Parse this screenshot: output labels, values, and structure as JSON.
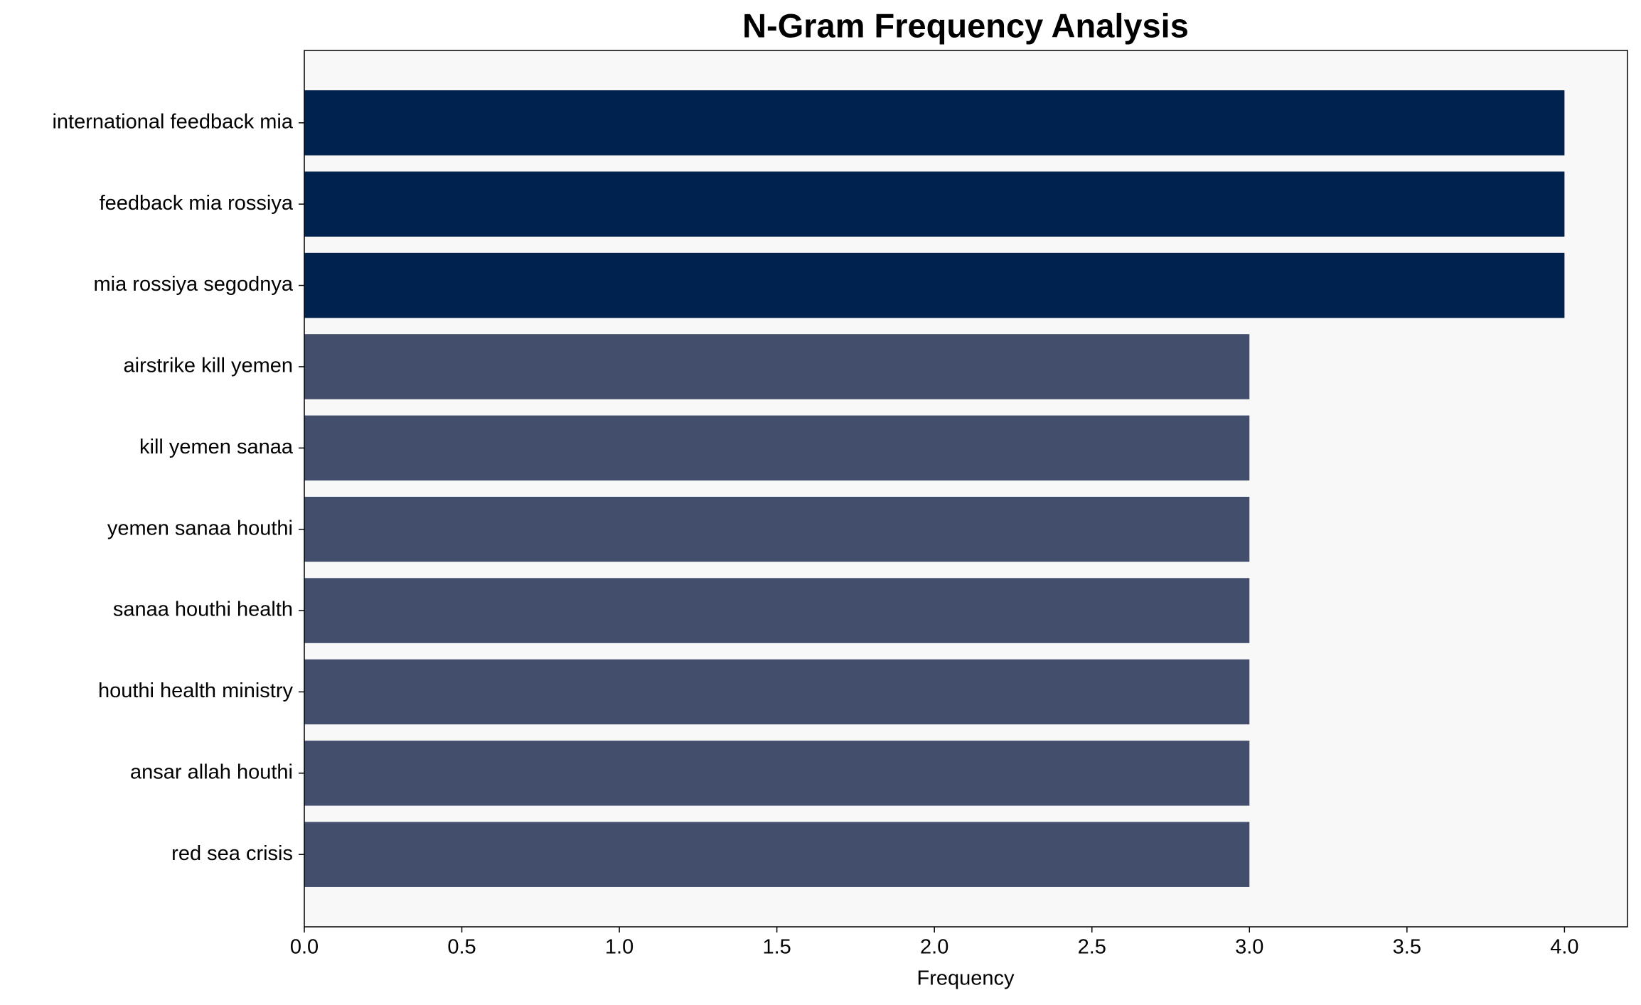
{
  "chart_data": {
    "type": "barh",
    "title": "N-Gram Frequency Analysis",
    "x_label": "Frequency",
    "categories": [
      "international feedback mia",
      "feedback mia rossiya",
      "mia rossiya segodnya",
      "airstrike kill yemen",
      "kill yemen sanaa",
      "yemen sanaa houthi",
      "sanaa houthi health",
      "houthi health ministry",
      "ansar allah houthi",
      "red sea crisis"
    ],
    "values": [
      4,
      4,
      4,
      3,
      3,
      3,
      3,
      3,
      3,
      3
    ],
    "colors": [
      "#00224e",
      "#00224e",
      "#00224e",
      "#434e6c",
      "#434e6c",
      "#434e6c",
      "#434e6c",
      "#434e6c",
      "#434e6c",
      "#434e6c"
    ],
    "xlim": [
      0,
      4.2
    ],
    "xticks": [
      {
        "value": 0,
        "label": "0.0"
      },
      {
        "value": 0.5,
        "label": "0.5"
      },
      {
        "value": 1,
        "label": "1.0"
      },
      {
        "value": 1.5,
        "label": "1.5"
      },
      {
        "value": 2,
        "label": "2.0"
      },
      {
        "value": 2.5,
        "label": "2.5"
      },
      {
        "value": 3,
        "label": "3.0"
      },
      {
        "value": 3.5,
        "label": "3.5"
      },
      {
        "value": 4,
        "label": "4.0"
      }
    ],
    "background": "#f8f8f8"
  }
}
